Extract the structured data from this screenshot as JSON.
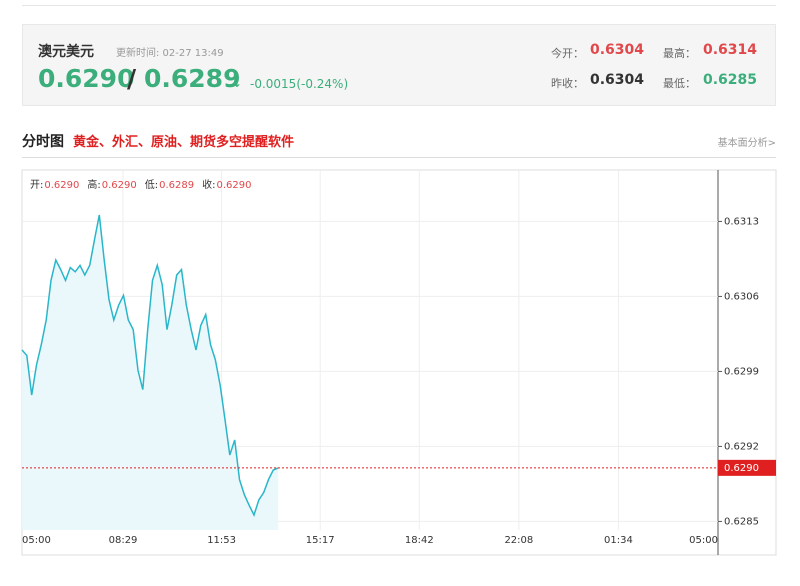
{
  "header": {
    "name": "澳元美元",
    "update": "更新时间: 02-27 13:49",
    "bid": "0.6290",
    "slash": "/",
    "ask": "0.6289",
    "arrow": "↓",
    "change": "-0.0015(-0.24%)",
    "open_label": "今开：",
    "open": "0.6304",
    "high_label": "最高：",
    "high": "0.6314",
    "prev_label": "昨收：",
    "prev": "0.6304",
    "low_label": "最低：",
    "low": "0.6285"
  },
  "section": {
    "title": "分时图",
    "promo": "黄金、外汇、原油、期货多空提醒软件",
    "link": "基本面分析>"
  },
  "chart_data": {
    "type": "line",
    "color": "#29b6c9",
    "area_color": "#eaf7fb",
    "grid": true,
    "info": [
      {
        "label": "开:",
        "value": "0.6290"
      },
      {
        "label": "高:",
        "value": "0.6290"
      },
      {
        "label": "低:",
        "value": "0.6289"
      },
      {
        "label": "收:",
        "value": "0.6290"
      }
    ],
    "x": [
      "05:00",
      "05:10",
      "05:20",
      "05:30",
      "05:40",
      "05:50",
      "06:00",
      "06:10",
      "06:20",
      "06:30",
      "06:40",
      "06:50",
      "07:00",
      "07:10",
      "07:20",
      "07:30",
      "07:40",
      "07:50",
      "08:00",
      "08:10",
      "08:20",
      "08:30",
      "08:40",
      "08:50",
      "09:00",
      "09:10",
      "09:20",
      "09:30",
      "09:40",
      "09:50",
      "10:00",
      "10:10",
      "10:20",
      "10:30",
      "10:40",
      "10:50",
      "11:00",
      "11:10",
      "11:20",
      "11:30",
      "11:40",
      "11:50",
      "12:00",
      "12:10",
      "12:20",
      "12:30",
      "12:40",
      "12:50",
      "13:00",
      "13:10",
      "13:20",
      "13:30",
      "13:40",
      "13:50"
    ],
    "values": [
      0.6301,
      0.63005,
      0.62968,
      0.62996,
      0.63015,
      0.63038,
      0.63075,
      0.63094,
      0.63085,
      0.63075,
      0.63087,
      0.63083,
      0.63089,
      0.6308,
      0.63089,
      0.63113,
      0.63136,
      0.63094,
      0.63057,
      0.63038,
      0.63052,
      0.63061,
      0.63038,
      0.63029,
      0.62991,
      0.62973,
      0.63029,
      0.63075,
      0.63089,
      0.63071,
      0.63029,
      0.63052,
      0.6308,
      0.63085,
      0.63052,
      0.63029,
      0.6301,
      0.63033,
      0.63043,
      0.63015,
      0.63001,
      0.62977,
      0.62945,
      0.62912,
      0.62926,
      0.62889,
      0.62875,
      0.62865,
      0.62856,
      0.6287,
      0.62877,
      0.62889,
      0.62898,
      0.629
    ],
    "xticks": [
      "05:00",
      "08:29",
      "11:53",
      "15:17",
      "18:42",
      "22:08",
      "01:34",
      "05:00"
    ],
    "ylim": [
      0.62842,
      0.63178
    ],
    "yticks": [
      0.6285,
      0.6292,
      0.6299,
      0.6306,
      0.6313
    ],
    "current": {
      "value": 0.629,
      "label": "0.6290"
    }
  }
}
